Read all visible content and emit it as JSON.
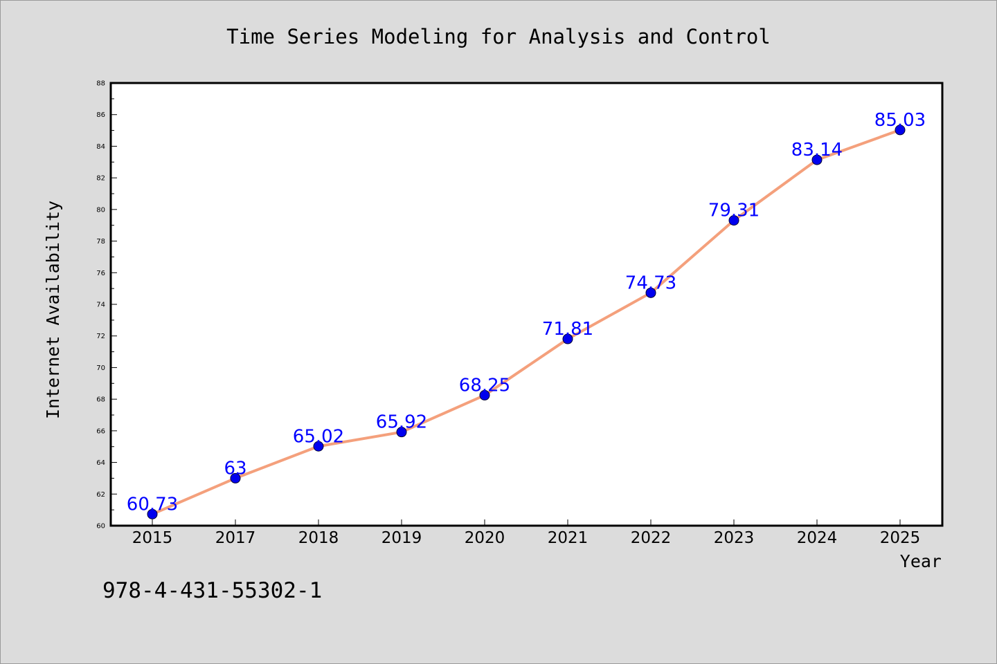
{
  "chart_data": {
    "type": "line",
    "title": "Time Series Modeling for Analysis and Control",
    "xlabel": "Year",
    "ylabel": "Internet Availability",
    "categories": [
      "2015",
      "2017",
      "2018",
      "2019",
      "2020",
      "2021",
      "2022",
      "2023",
      "2024",
      "2025"
    ],
    "series": [
      {
        "values": [
          60.73,
          63,
          65.02,
          65.92,
          68.25,
          71.81,
          74.73,
          79.31,
          83.14,
          85.03
        ],
        "labels": [
          "60.73",
          "63",
          "65.02",
          "65.92",
          "68.25",
          "71.81",
          "74.73",
          "79.31",
          "83.14",
          "85.03"
        ]
      }
    ],
    "ylim": [
      60,
      88
    ],
    "yticks": [
      "60",
      "62",
      "64",
      "66",
      "68",
      "70",
      "72",
      "74",
      "76",
      "78",
      "80",
      "82",
      "84",
      "86",
      "88"
    ],
    "grid": false,
    "line_color": "#f4a07c",
    "marker_color": "#0000ee",
    "label_color": "#0000ff"
  },
  "footnote": "978-4-431-55302-1"
}
